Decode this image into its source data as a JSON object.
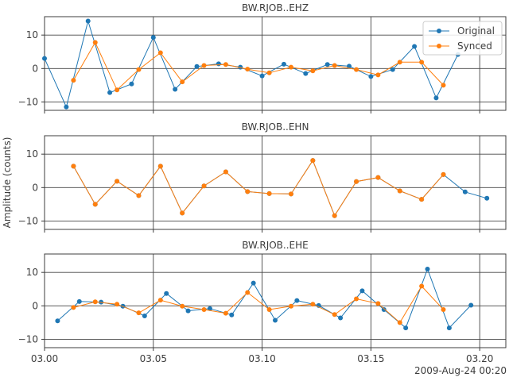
{
  "chart_data": {
    "type": "line",
    "ylabel": "Amplitude (counts)",
    "x_offset_label": "2009-Aug-24 00:20",
    "xlim": [
      0.0,
      0.212
    ],
    "xticks": [
      0.0,
      0.05,
      0.1,
      0.15,
      0.2
    ],
    "xticklabels": [
      "03.00",
      "03.05",
      "03.10",
      "03.15",
      "03.20"
    ],
    "ylim": [
      -12.5,
      15.5
    ],
    "yticks": [
      -10,
      0,
      10
    ],
    "yticklabels": [
      "−10",
      "0",
      "10"
    ],
    "grid": true,
    "legend": {
      "location": "top-right",
      "entries": [
        "Original",
        "Synced"
      ]
    },
    "colors": {
      "original": "#1f77b4",
      "synced": "#ff7f0e"
    },
    "panels": [
      {
        "title": "BW.RJOB..EHZ",
        "series": [
          {
            "name": "Original",
            "x": [
              0.0,
              0.01,
              0.02,
              0.03,
              0.04,
              0.05,
              0.06,
              0.07,
              0.08,
              0.09,
              0.1,
              0.11,
              0.12,
              0.13,
              0.14,
              0.15,
              0.16,
              0.17,
              0.18,
              0.19
            ],
            "y": [
              3.0,
              -11.5,
              14.2,
              -7.2,
              -4.6,
              9.3,
              -6.2,
              0.6,
              1.4,
              0.4,
              -2.2,
              1.3,
              -1.5,
              1.2,
              0.7,
              -2.4,
              -0.3,
              6.6,
              -8.8,
              4.2
            ]
          },
          {
            "name": "Synced",
            "x": [
              0.0133,
              0.0233,
              0.0333,
              0.0433,
              0.0533,
              0.0633,
              0.0733,
              0.0833,
              0.0933,
              0.1033,
              0.1133,
              0.1233,
              0.1333,
              0.1433,
              0.1533,
              0.1633,
              0.1733,
              0.1833
            ],
            "y": [
              -3.5,
              7.8,
              -6.4,
              -0.3,
              4.7,
              -4.0,
              0.9,
              1.2,
              -0.2,
              -1.3,
              0.4,
              -0.7,
              0.9,
              -0.3,
              -1.9,
              1.9,
              1.9,
              -5.0
            ]
          }
        ]
      },
      {
        "title": "BW.RJOB..EHN",
        "series": [
          {
            "name": "Original",
            "x": [
              0.0133,
              0.0233,
              0.0333,
              0.0433,
              0.0533,
              0.0633,
              0.0733,
              0.0833,
              0.0933,
              0.1033,
              0.1133,
              0.1233,
              0.1333,
              0.1433,
              0.1533,
              0.1633,
              0.1733,
              0.1833,
              0.1933,
              0.2033
            ],
            "y": [
              6.4,
              -5.0,
              1.9,
              -2.4,
              6.4,
              -7.6,
              0.5,
              4.7,
              -1.2,
              -1.8,
              -1.9,
              8.1,
              -8.4,
              1.8,
              3.0,
              -1.0,
              -3.5,
              3.9,
              -1.3,
              -3.2
            ]
          },
          {
            "name": "Synced",
            "x": [
              0.0133,
              0.0233,
              0.0333,
              0.0433,
              0.0533,
              0.0633,
              0.0733,
              0.0833,
              0.0933,
              0.1033,
              0.1133,
              0.1233,
              0.1333,
              0.1433,
              0.1533,
              0.1633,
              0.1733,
              0.1833
            ],
            "y": [
              6.4,
              -5.0,
              1.9,
              -2.4,
              6.4,
              -7.6,
              0.5,
              4.7,
              -1.2,
              -1.8,
              -1.9,
              8.1,
              -8.4,
              1.8,
              3.0,
              -1.0,
              -3.5,
              3.9
            ]
          }
        ]
      },
      {
        "title": "BW.RJOB..EHE",
        "series": [
          {
            "name": "Original",
            "x": [
              0.006,
              0.016,
              0.026,
              0.036,
              0.046,
              0.056,
              0.066,
              0.076,
              0.086,
              0.096,
              0.106,
              0.116,
              0.126,
              0.136,
              0.146,
              0.156,
              0.166,
              0.176,
              0.186,
              0.196
            ],
            "y": [
              -4.5,
              1.3,
              1.1,
              -0.1,
              -3.0,
              3.7,
              -1.5,
              -0.8,
              -2.7,
              6.8,
              -4.3,
              1.6,
              0.1,
              -3.6,
              4.5,
              -1.1,
              -6.6,
              11.0,
              -6.6,
              0.2
            ]
          },
          {
            "name": "Synced",
            "x": [
              0.0133,
              0.0233,
              0.0333,
              0.0433,
              0.0533,
              0.0633,
              0.0733,
              0.0833,
              0.0933,
              0.1033,
              0.1133,
              0.1233,
              0.1333,
              0.1433,
              0.1533,
              0.1633,
              0.1733,
              0.1833
            ],
            "y": [
              -0.5,
              1.2,
              0.5,
              -2.1,
              1.7,
              -0.1,
              -1.1,
              -2.2,
              4.0,
              -1.1,
              -0.1,
              0.5,
              -2.6,
              2.1,
              0.7,
              -5.0,
              5.9,
              -1.1
            ]
          }
        ]
      }
    ]
  }
}
